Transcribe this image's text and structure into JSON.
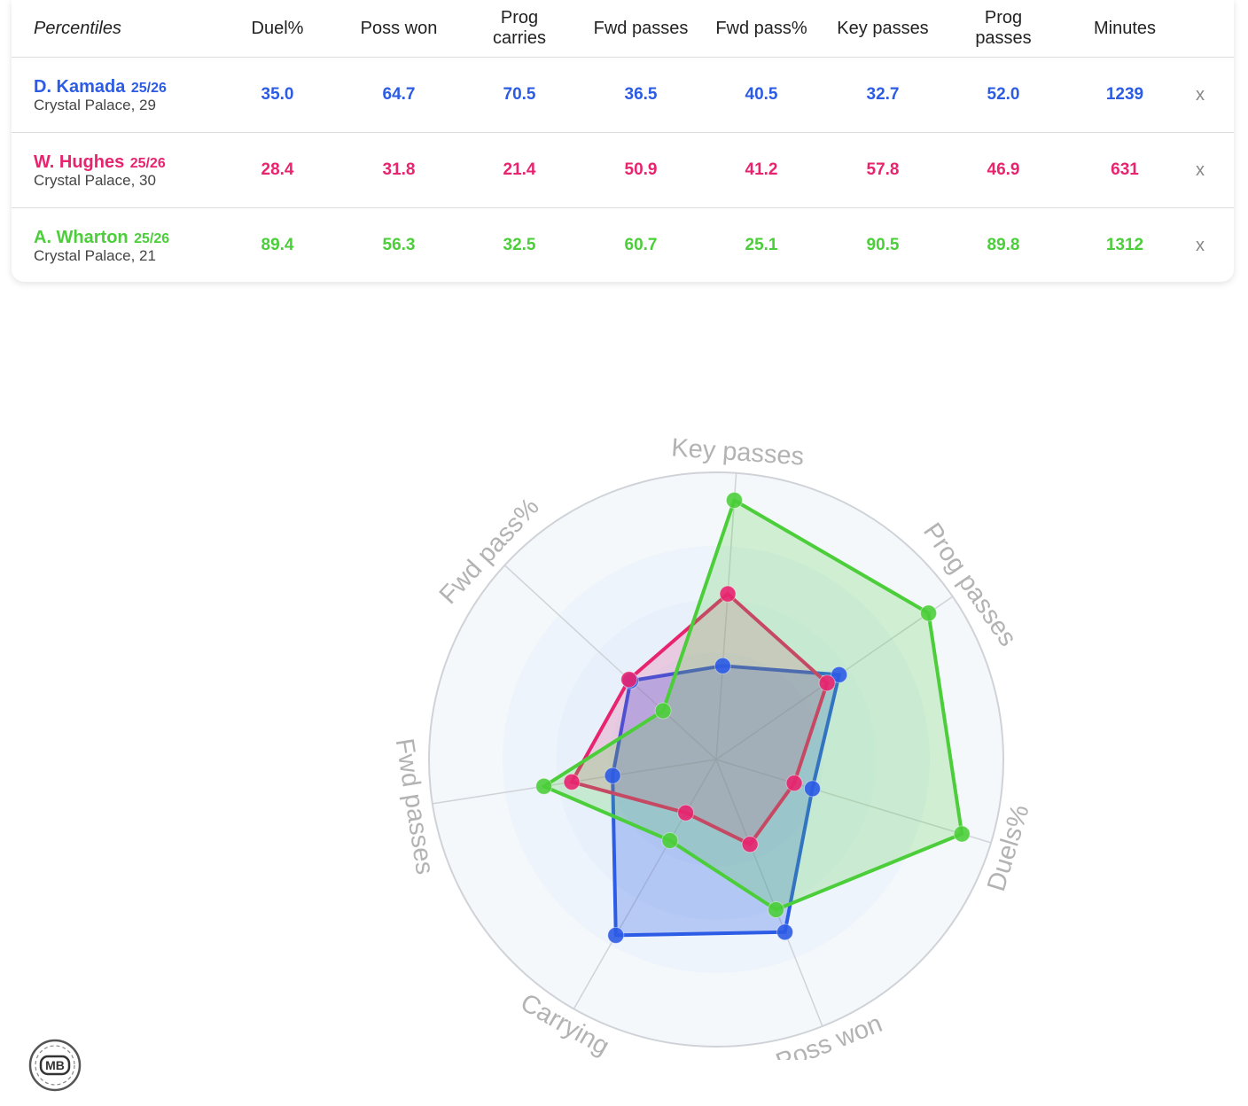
{
  "table": {
    "corner_label": "Percentiles",
    "columns": [
      "Duel%",
      "Poss won",
      "Prog\ncarries",
      "Fwd passes",
      "Fwd pass%",
      "Key passes",
      "Prog\npasses",
      "Minutes"
    ],
    "remove_label": "x",
    "players": [
      {
        "name": "D. Kamada",
        "season": "25/26",
        "club": "Crystal Palace, 29",
        "color": "#2c5be6",
        "values": [
          "35.0",
          "64.7",
          "70.5",
          "36.5",
          "40.5",
          "32.7",
          "52.0",
          "1239"
        ]
      },
      {
        "name": "W. Hughes",
        "season": "25/26",
        "club": "Crystal Palace, 30",
        "color": "#e8246f",
        "values": [
          "28.4",
          "31.8",
          "21.4",
          "50.9",
          "41.2",
          "57.8",
          "46.9",
          "631"
        ]
      },
      {
        "name": "A. Wharton",
        "season": "25/26",
        "club": "Crystal Palace, 21",
        "color": "#4cce3b",
        "values": [
          "89.4",
          "56.3",
          "32.5",
          "60.7",
          "25.1",
          "90.5",
          "89.8",
          "1312"
        ]
      }
    ]
  },
  "chart_data": {
    "type": "radar",
    "axes": [
      "Key passes",
      "Prog passes",
      "Duels%",
      "Poss won",
      "Carrying",
      "Fwd passes",
      "Fwd pass%"
    ],
    "range": [
      0,
      100
    ],
    "series": [
      {
        "name": "D. Kamada",
        "color": "#2c5be6",
        "values": [
          32.7,
          52.0,
          35.0,
          64.7,
          70.5,
          36.5,
          40.5
        ]
      },
      {
        "name": "W. Hughes",
        "color": "#e8246f",
        "values": [
          57.8,
          46.9,
          28.4,
          31.8,
          21.4,
          50.9,
          41.2
        ]
      },
      {
        "name": "A. Wharton",
        "color": "#4cce3b",
        "values": [
          90.5,
          89.8,
          89.4,
          56.3,
          32.5,
          60.7,
          25.1
        ]
      }
    ],
    "grid": true
  },
  "logo": {
    "text": "MB"
  }
}
